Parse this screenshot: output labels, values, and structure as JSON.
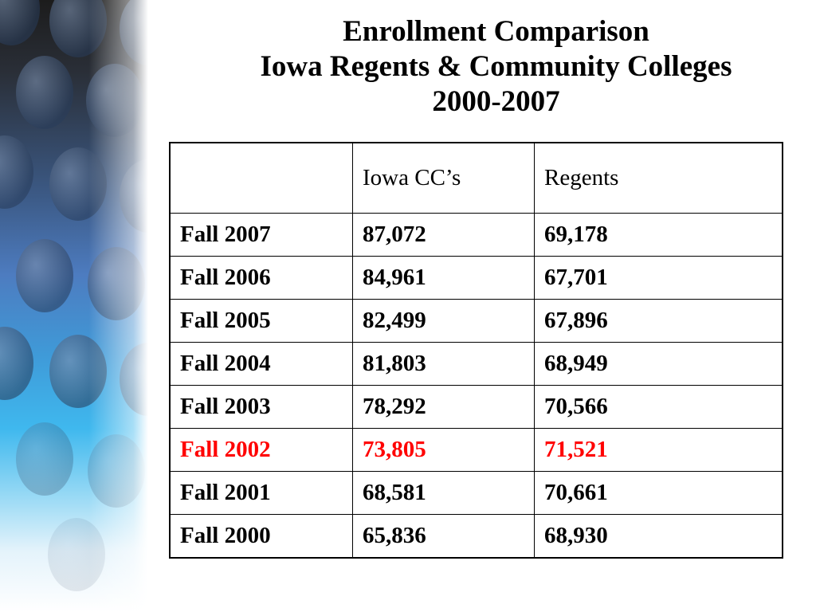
{
  "title": {
    "line1": "Enrollment Comparison",
    "line2": "Iowa Regents & Community Colleges",
    "line3": "2000-2007"
  },
  "table": {
    "headers": [
      "",
      "Iowa CC’s",
      "Regents"
    ],
    "rows": [
      [
        "Fall 2007",
        "87,072",
        "69,178"
      ],
      [
        "Fall 2006",
        "84,961",
        "67,701"
      ],
      [
        "Fall 2005",
        "82,499",
        "67,896"
      ],
      [
        "Fall 2004",
        "81,803",
        "68,949"
      ],
      [
        "Fall 2003",
        "78,292",
        "70,566"
      ],
      [
        "Fall 2002",
        "73,805",
        "71,521"
      ],
      [
        "Fall 2001",
        "68,581",
        "70,661"
      ],
      [
        "Fall 2000",
        "65,836",
        "68,930"
      ]
    ],
    "highlight_row_label": "Fall 2002",
    "highlight_color": "#ff0000"
  }
}
